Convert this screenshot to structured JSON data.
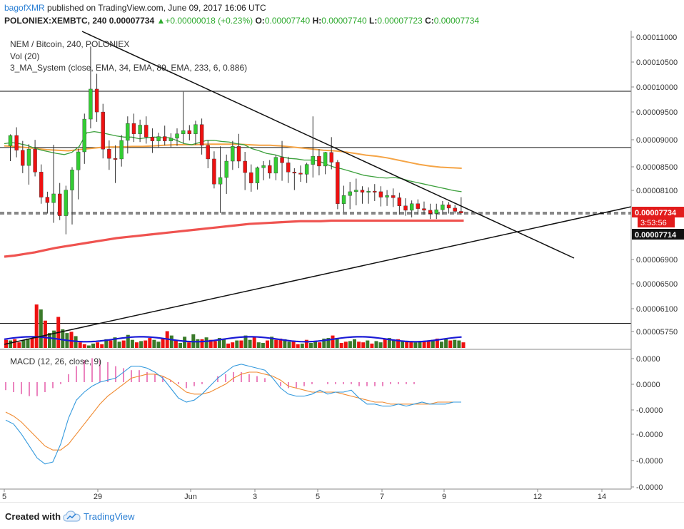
{
  "header": {
    "author": "bagofXMR",
    "published_text": " published on TradingView.com, June 09, 2017 16:06 UTC",
    "symbol": "POLONIEX:XEMBTC, 240",
    "last": "0.00007734",
    "change": "▲+0.00000018 (+0.23%)",
    "o_label": "O:",
    "o_value": "0.00007740",
    "h_label": "H:",
    "h_value": "0.00007740",
    "l_label": "L:",
    "l_value": "0.00007723",
    "c_label": "C:",
    "c_value": "0.00007734"
  },
  "legend": {
    "title": "NEM / Bitcoin, 240, POLONIEX",
    "vol": "Vol (20)",
    "ma_system": "3_MA_System (close, EMA, 34, EMA, 89, EMA, 233, 6, 0.886)",
    "macd": "MACD (12, 26, close, 9)"
  },
  "price_badges": {
    "current": "0.00007734",
    "countdown": "3:53:56",
    "other": "0.00007714"
  },
  "footer": {
    "created_with": "Created with",
    "brand": "TradingView"
  },
  "colors": {
    "up": "#33cc33",
    "down": "#ee1111",
    "vol_up": "#3a7a2a",
    "vol_down": "#ee1111",
    "ema34": "#3ca03c",
    "ema89": "#f5a445",
    "ema233": "#ef5350",
    "vol_ma": "#1a1ad6",
    "macd": "#3399dd",
    "signal": "#f08a30",
    "hist": "#e0409a",
    "badge_red": "#e21c1c",
    "badge_black": "#111111"
  },
  "chart_data": [
    {
      "type": "candlestick",
      "title": "NEM / Bitcoin, 240, POLONIEX",
      "y_ticks": [
        "0.00011000",
        "0.00010500",
        "0.00010000",
        "0.00009500",
        "0.00009000",
        "0.00008500",
        "0.00008100",
        "0.00007734",
        "0.00006900",
        "0.00006500",
        "0.00006100",
        "0.00005750"
      ],
      "x_ticks": [
        "5",
        "29",
        "Jun",
        "3",
        "5",
        "7",
        "9",
        "12",
        "14"
      ],
      "horizontal_levels": [
        9.96e-05,
        8.93e-05,
        7.74e-05,
        5.71e-05
      ],
      "candles": [
        [
          8.96e-05,
          9.17e-05,
          8.68e-05,
          9.15e-05
        ],
        [
          9.15e-05,
          9.3e-05,
          8.75e-05,
          8.88e-05
        ],
        [
          8.88e-05,
          9.05e-05,
          8.46e-05,
          8.6e-05
        ],
        [
          8.6e-05,
          8.99e-05,
          8.25e-05,
          8.9e-05
        ],
        [
          8.9e-05,
          9.07e-05,
          8.4e-05,
          8.48e-05
        ],
        [
          8.48e-05,
          8.62e-05,
          7.9e-05,
          8.02e-05
        ],
        [
          8.02e-05,
          8.12e-05,
          7.72e-05,
          7.92e-05
        ],
        [
          7.92e-05,
          8.98e-05,
          7.55e-05,
          8.08e-05
        ],
        [
          8.08e-05,
          8.28e-05,
          7.6e-05,
          7.68e-05
        ],
        [
          7.68e-05,
          8.23e-05,
          7.34e-05,
          8.15e-05
        ],
        [
          8.15e-05,
          8.57e-05,
          7.52e-05,
          8.52e-05
        ],
        [
          8.52e-05,
          8.91e-05,
          7.98e-05,
          8.85e-05
        ],
        [
          8.85e-05,
          9.55e-05,
          8.63e-05,
          9.45e-05
        ],
        [
          9.45e-05,
          0.0001078,
          9.28e-05,
          0.0001
        ],
        [
          0.0001,
          0.0001028,
          9.4e-05,
          9.58e-05
        ],
        [
          9.58e-05,
          9.73e-05,
          8.73e-05,
          8.9e-05
        ],
        [
          8.9e-05,
          9.06e-05,
          8.52e-05,
          8.73e-05
        ],
        [
          8.73e-05,
          8.97e-05,
          8.28e-05,
          8.72e-05
        ],
        [
          8.72e-05,
          9.16e-05,
          8.58e-05,
          9.06e-05
        ],
        [
          9.06e-05,
          9.5e-05,
          8.82e-05,
          9.37e-05
        ],
        [
          9.37e-05,
          9.55e-05,
          9.03e-05,
          9.18e-05
        ],
        [
          9.18e-05,
          9.44e-05,
          9.03e-05,
          9.34e-05
        ],
        [
          9.34e-05,
          9.5e-05,
          9e-05,
          9.12e-05
        ],
        [
          9.12e-05,
          9.28e-05,
          8.83e-05,
          9.05e-05
        ],
        [
          9.05e-05,
          9.2e-05,
          8.93e-05,
          9.13e-05
        ],
        [
          9.13e-05,
          9.33e-05,
          8.97e-05,
          9.05e-05
        ],
        [
          9.05e-05,
          9.19e-05,
          8.93e-05,
          9.1e-05
        ],
        [
          9.1e-05,
          9.28e-05,
          8.96e-05,
          9.18e-05
        ],
        [
          9.18e-05,
          9.95e-05,
          9e-05,
          9.24e-05
        ],
        [
          9.24e-05,
          9.34e-05,
          9.06e-05,
          9.18e-05
        ],
        [
          9.18e-05,
          9.42e-05,
          8.98e-05,
          9.35e-05
        ],
        [
          9.35e-05,
          9.46e-05,
          8.8e-05,
          8.97e-05
        ],
        [
          8.97e-05,
          9.06e-05,
          8.55e-05,
          8.72e-05
        ],
        [
          8.72e-05,
          8.86e-05,
          8.18e-05,
          8.26e-05
        ],
        [
          8.26e-05,
          8.95e-05,
          7.73e-05,
          8.38e-05
        ],
        [
          8.38e-05,
          8.8e-05,
          8.08e-05,
          8.68e-05
        ],
        [
          8.68e-05,
          9.05e-05,
          8.52e-05,
          8.95e-05
        ],
        [
          8.95e-05,
          9.18e-05,
          8.55e-05,
          8.68e-05
        ],
        [
          8.68e-05,
          8.85e-05,
          8.15e-05,
          8.47e-05
        ],
        [
          8.47e-05,
          8.62e-05,
          8.12e-05,
          8.28e-05
        ],
        [
          8.28e-05,
          8.58e-05,
          8.16e-05,
          8.56e-05
        ],
        [
          8.56e-05,
          8.68e-05,
          8.33e-05,
          8.6e-05
        ],
        [
          8.6e-05,
          8.7e-05,
          8.36e-05,
          8.46e-05
        ],
        [
          8.46e-05,
          8.8e-05,
          8.33e-05,
          8.75e-05
        ],
        [
          8.75e-05,
          9.05e-05,
          8.32e-05,
          8.65e-05
        ],
        [
          8.65e-05,
          8.76e-05,
          8.28e-05,
          8.48e-05
        ],
        [
          8.48e-05,
          8.55e-05,
          8.15e-05,
          8.46e-05
        ],
        [
          8.46e-05,
          8.6e-05,
          8.3e-05,
          8.44e-05
        ],
        [
          8.44e-05,
          8.65e-05,
          8.28e-05,
          8.62e-05
        ],
        [
          8.62e-05,
          9.5e-05,
          8.38e-05,
          8.77e-05
        ],
        [
          8.77e-05,
          8.9e-05,
          8.42e-05,
          8.59e-05
        ],
        [
          8.59e-05,
          8.85e-05,
          8.44e-05,
          8.84e-05
        ],
        [
          8.84e-05,
          9.12e-05,
          8.53e-05,
          8.66e-05
        ],
        [
          8.66e-05,
          8.7e-05,
          7.8e-05,
          7.9e-05
        ],
        [
          7.9e-05,
          8.23e-05,
          7.75e-05,
          8.05e-05
        ],
        [
          8.05e-05,
          8.3e-05,
          7.8e-05,
          8.12e-05
        ],
        [
          8.12e-05,
          8.36e-05,
          7.87e-05,
          8.15e-05
        ],
        [
          8.15e-05,
          8.22e-05,
          7.9e-05,
          8.11e-05
        ],
        [
          8.11e-05,
          8.2e-05,
          7.9e-05,
          8.13e-05
        ],
        [
          8.13e-05,
          8.26e-05,
          7.95e-05,
          8.12e-05
        ],
        [
          8.12e-05,
          8.22e-05,
          7.85e-05,
          8.02e-05
        ],
        [
          8.02e-05,
          8.15e-05,
          7.86e-05,
          8.05e-05
        ],
        [
          8.05e-05,
          8.18e-05,
          7.84e-05,
          8.01e-05
        ],
        [
          8.01e-05,
          8.1e-05,
          7.7e-05,
          7.86e-05
        ],
        [
          7.86e-05,
          8e-05,
          7.68e-05,
          7.78e-05
        ],
        [
          7.78e-05,
          7.96e-05,
          7.65e-05,
          7.9e-05
        ],
        [
          7.9e-05,
          7.98e-05,
          7.7e-05,
          7.81e-05
        ],
        [
          7.81e-05,
          7.94e-05,
          7.7e-05,
          7.78e-05
        ],
        [
          7.78e-05,
          7.9e-05,
          7.62e-05,
          7.72e-05
        ],
        [
          7.72e-05,
          7.9e-05,
          7.62e-05,
          7.79e-05
        ],
        [
          7.79e-05,
          7.95e-05,
          7.7e-05,
          7.88e-05
        ],
        [
          7.88e-05,
          7.93e-05,
          7.72e-05,
          7.82e-05
        ],
        [
          7.82e-05,
          7.88e-05,
          7.72e-05,
          7.76e-05
        ],
        [
          7.76e-05,
          8.02e-05,
          7.7e-05,
          7.73e-05
        ]
      ],
      "volume": [
        13,
        12,
        14,
        9,
        12,
        15,
        16,
        70,
        62,
        44,
        24,
        28,
        50,
        30,
        24,
        26,
        19,
        9,
        6,
        4,
        7,
        9,
        6,
        14,
        12,
        17,
        10,
        12,
        21,
        13,
        9,
        11,
        12,
        16,
        13,
        10,
        16,
        27,
        20,
        12,
        8,
        18,
        9,
        22,
        14,
        14,
        17,
        13,
        11,
        16,
        15,
        7,
        9,
        12,
        12,
        20,
        13,
        17,
        9,
        8,
        12,
        18,
        13,
        15,
        14,
        10,
        11,
        6,
        7,
        13,
        8,
        10,
        9,
        15,
        16,
        20,
        16,
        8,
        10,
        11,
        14,
        10,
        9,
        12,
        7,
        11,
        9,
        15,
        16,
        13,
        14,
        12,
        10,
        11,
        9,
        10,
        11,
        11,
        13,
        15,
        10,
        14,
        12,
        13,
        12,
        9,
        12,
        10,
        11,
        12
      ],
      "ema34": [
        9e-05,
        9.02e-05,
        9e-05,
        8.97e-05,
        8.92e-05,
        8.88e-05,
        8.85e-05,
        8.82e-05,
        8.8e-05,
        8.84e-05,
        8.95e-05,
        9.2e-05,
        9.22e-05,
        9.2e-05,
        9.17e-05,
        9.14e-05,
        9.12e-05,
        9.12e-05,
        9.09e-05,
        9.11e-05,
        9.12e-05,
        9.11e-05,
        9.11e-05,
        9.06e-05,
        9e-05,
        8.98e-05,
        9.02e-05,
        9.06e-05,
        9.06e-05,
        9.04e-05,
        9.03e-05,
        9e-05,
        8.98e-05,
        8.91e-05,
        8.87e-05,
        8.82e-05,
        8.8e-05,
        8.76e-05,
        8.73e-05,
        8.72e-05,
        8.7e-05,
        8.7e-05,
        8.68e-05,
        8.62e-05,
        8.57e-05,
        8.54e-05,
        8.5e-05,
        8.46e-05,
        8.42e-05,
        8.4e-05,
        8.38e-05,
        8.37e-05,
        8.38e-05,
        8.36e-05,
        8.32e-05,
        8.29e-05,
        8.26e-05,
        8.23e-05,
        8.2e-05,
        8.17e-05,
        8.14e-05,
        8.12e-05
      ],
      "ema89": [
        8.96e-05,
        8.95e-05,
        8.93e-05,
        8.91e-05,
        8.89e-05,
        8.88e-05,
        8.87e-05,
        8.89e-05,
        8.91e-05,
        8.93e-05,
        8.94e-05,
        8.94e-05,
        8.95e-05,
        8.95e-05,
        8.96e-05,
        8.97e-05,
        8.98e-05,
        8.98e-05,
        8.98e-05,
        8.99e-05,
        8.99e-05,
        8.99e-05,
        8.99e-05,
        8.98e-05,
        8.97e-05,
        8.97e-05,
        8.96e-05,
        8.94e-05,
        8.92e-05,
        8.9e-05,
        8.88e-05,
        8.87e-05,
        8.85e-05,
        8.82e-05,
        8.79e-05,
        8.77e-05,
        8.74e-05,
        8.7e-05,
        8.66e-05,
        8.62e-05,
        8.59e-05,
        8.57e-05,
        8.56e-05,
        8.55e-05
      ],
      "ema233": [
        6.93e-05,
        6.95e-05,
        6.98e-05,
        7.01e-05,
        7.05e-05,
        7.09e-05,
        7.12e-05,
        7.15e-05,
        7.18e-05,
        7.21e-05,
        7.24e-05,
        7.27e-05,
        7.29e-05,
        7.31e-05,
        7.33e-05,
        7.35e-05,
        7.37e-05,
        7.39e-05,
        7.41e-05,
        7.43e-05,
        7.45e-05,
        7.47e-05,
        7.49e-05,
        7.51e-05,
        7.53e-05,
        7.54e-05,
        7.55e-05,
        7.56e-05,
        7.57e-05,
        7.58e-05,
        7.58e-05,
        7.58e-05,
        7.59e-05,
        7.59e-05,
        7.59e-05,
        7.59e-05,
        7.59e-05,
        7.59e-05,
        7.59e-05,
        7.59e-05,
        7.59e-05,
        7.59e-05,
        7.59e-05,
        7.59e-05,
        7.59e-05,
        7.59e-05
      ]
    },
    {
      "type": "line",
      "title": "MACD (12, 26, close, 9)",
      "y_ticks": [
        "0.0000",
        "0.0000",
        "-0.0000",
        "-0.0000",
        "-0.0000",
        "-0.0000"
      ],
      "macd": [
        -1.9,
        -2.1,
        -2.6,
        -3.2,
        -3.8,
        -4.1,
        -4.0,
        -3.1,
        -1.8,
        -0.9,
        -0.5,
        -0.2,
        0.0,
        0.1,
        0.2,
        0.5,
        0.8,
        0.8,
        0.7,
        0.5,
        0.2,
        -0.3,
        -0.8,
        -1.0,
        -0.9,
        -0.6,
        -0.2,
        0.2,
        0.5,
        0.8,
        0.9,
        0.8,
        0.7,
        0.6,
        0.2,
        -0.3,
        -0.6,
        -0.7,
        -0.7,
        -0.6,
        -0.4,
        -0.6,
        -0.5,
        -0.5,
        -0.4,
        -0.8,
        -1.1,
        -1.1,
        -1.2,
        -1.2,
        -1.1,
        -1.2,
        -1.1,
        -1.0,
        -1.1,
        -1.1,
        -1.1,
        -1.0,
        -1.0
      ],
      "signal": [
        -1.5,
        -1.7,
        -2.0,
        -2.4,
        -2.8,
        -3.2,
        -3.4,
        -3.4,
        -3.1,
        -2.6,
        -2.1,
        -1.6,
        -1.1,
        -0.7,
        -0.4,
        -0.1,
        0.2,
        0.3,
        0.4,
        0.4,
        0.3,
        0.1,
        -0.2,
        -0.5,
        -0.6,
        -0.6,
        -0.5,
        -0.3,
        -0.1,
        0.2,
        0.4,
        0.5,
        0.5,
        0.4,
        0.3,
        0.1,
        -0.2,
        -0.3,
        -0.4,
        -0.5,
        -0.5,
        -0.5,
        -0.5,
        -0.6,
        -0.7,
        -0.8,
        -0.9,
        -1.0,
        -1.0,
        -1.1,
        -1.1,
        -1.1,
        -1.1,
        -1.1,
        -1.1,
        -1.0,
        -1.0,
        -1.0
      ],
      "histogram": [
        -0.4,
        -0.5,
        -0.6,
        -0.7,
        -0.7,
        -0.5,
        -0.3,
        -0.1,
        0.4,
        0.8,
        1.1,
        1.2,
        1.1,
        1.0,
        0.8,
        0.7,
        0.6,
        0.6,
        0.5,
        0.4,
        0.3,
        0.1,
        -0.1,
        -0.3,
        -0.2,
        -0.1,
        0.0,
        0.3,
        0.4,
        0.5,
        0.5,
        0.4,
        0.3,
        0.2,
        0.0,
        -0.2,
        -0.3,
        -0.3,
        -0.2,
        -0.1,
        0.0,
        -0.1,
        -0.1,
        -0.1,
        -0.1,
        -0.2,
        -0.2,
        -0.2,
        -0.2,
        -0.1,
        -0.1,
        -0.1,
        -0.1,
        0.0,
        0.0,
        0.0,
        0.0,
        0.0
      ]
    }
  ]
}
